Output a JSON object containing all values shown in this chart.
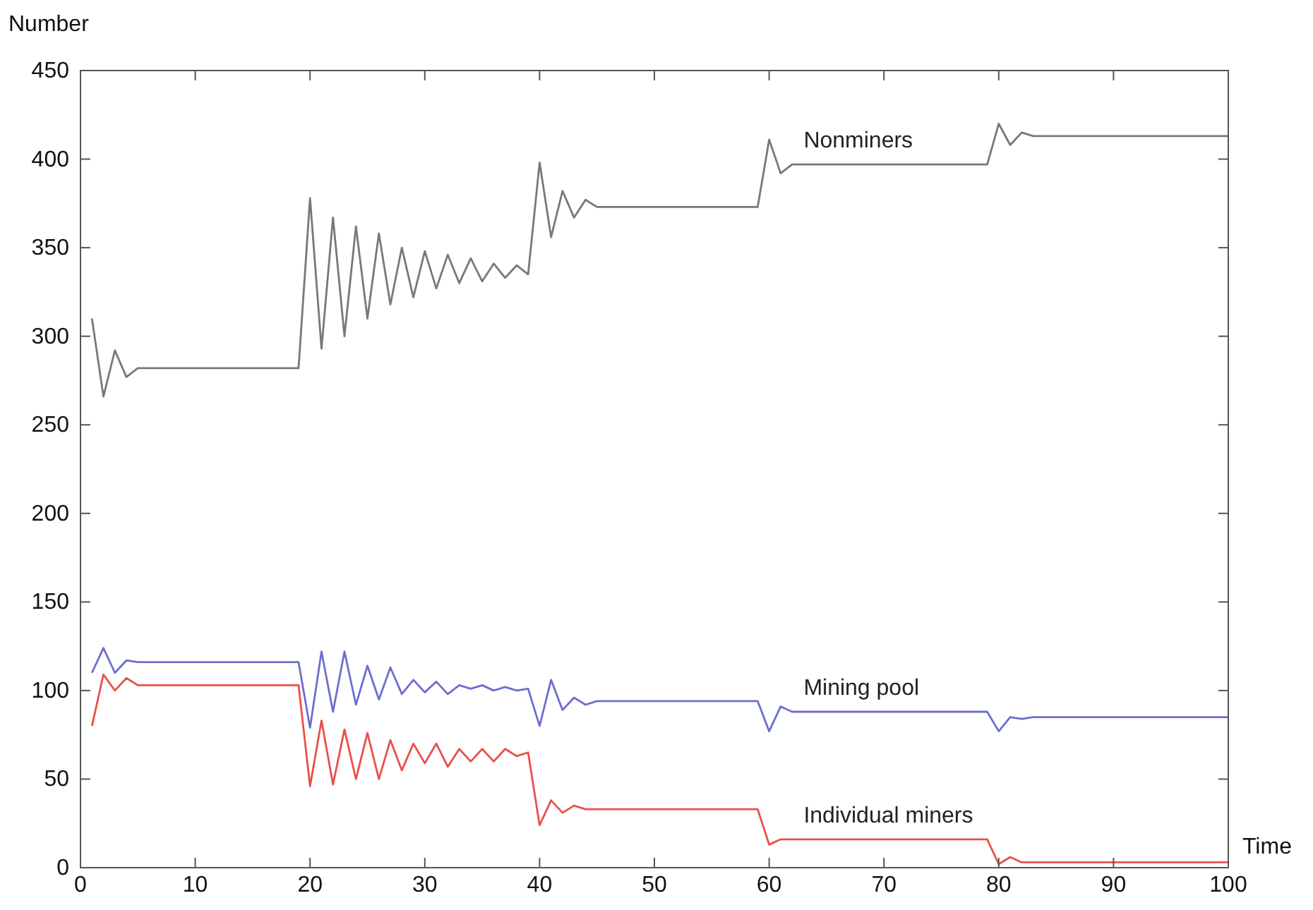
{
  "chart_data": {
    "type": "line",
    "xlabel": "Time",
    "ylabel": "Number",
    "xlim": [
      0,
      100
    ],
    "ylim": [
      0,
      450
    ],
    "xticks": [
      0,
      10,
      20,
      30,
      40,
      50,
      60,
      70,
      80,
      90,
      100
    ],
    "yticks": [
      0,
      50,
      100,
      150,
      200,
      250,
      300,
      350,
      400,
      450
    ],
    "grid": false,
    "marker": "none",
    "line_style": "solid",
    "series": [
      {
        "name": "Nonminers",
        "color": "#7f7575",
        "x": [
          1,
          2,
          3,
          4,
          5,
          19,
          20,
          21,
          22,
          23,
          24,
          25,
          26,
          27,
          28,
          29,
          30,
          31,
          32,
          33,
          34,
          35,
          36,
          37,
          38,
          39,
          40,
          41,
          42,
          43,
          44,
          45,
          59,
          60,
          61,
          62,
          79,
          80,
          81,
          82,
          83,
          100
        ],
        "values": [
          310,
          266,
          292,
          277,
          282,
          282,
          378,
          293,
          367,
          300,
          362,
          310,
          358,
          318,
          350,
          322,
          348,
          327,
          346,
          330,
          344,
          331,
          341,
          333,
          340,
          335,
          398,
          356,
          382,
          367,
          377,
          373,
          373,
          411,
          392,
          397,
          397,
          420,
          408,
          415,
          413,
          413
        ]
      },
      {
        "name": "Mining pool",
        "color": "#6b6fcf",
        "x": [
          1,
          2,
          3,
          4,
          5,
          19,
          20,
          21,
          22,
          23,
          24,
          25,
          26,
          27,
          28,
          29,
          30,
          31,
          32,
          33,
          34,
          35,
          36,
          37,
          38,
          39,
          40,
          41,
          42,
          43,
          44,
          45,
          59,
          60,
          61,
          62,
          79,
          80,
          81,
          82,
          83,
          100
        ],
        "values": [
          110,
          124,
          110,
          117,
          116,
          116,
          79,
          122,
          88,
          122,
          92,
          114,
          95,
          113,
          98,
          106,
          99,
          105,
          98,
          103,
          101,
          103,
          100,
          102,
          100,
          101,
          80,
          106,
          89,
          96,
          92,
          94,
          94,
          77,
          91,
          88,
          88,
          77,
          85,
          84,
          85,
          85
        ]
      },
      {
        "name": "Individual miners",
        "color": "#e8504a",
        "x": [
          1,
          2,
          3,
          4,
          5,
          19,
          20,
          21,
          22,
          23,
          24,
          25,
          26,
          27,
          28,
          29,
          30,
          31,
          32,
          33,
          34,
          35,
          36,
          37,
          38,
          39,
          40,
          41,
          42,
          43,
          44,
          59,
          60,
          61,
          62,
          79,
          80,
          81,
          82,
          100
        ],
        "values": [
          80,
          109,
          100,
          107,
          103,
          103,
          46,
          83,
          47,
          78,
          50,
          76,
          50,
          72,
          55,
          70,
          59,
          70,
          57,
          67,
          60,
          67,
          60,
          67,
          63,
          65,
          24,
          38,
          31,
          35,
          33,
          33,
          13,
          16,
          16,
          16,
          2,
          6,
          3,
          3
        ]
      }
    ]
  }
}
